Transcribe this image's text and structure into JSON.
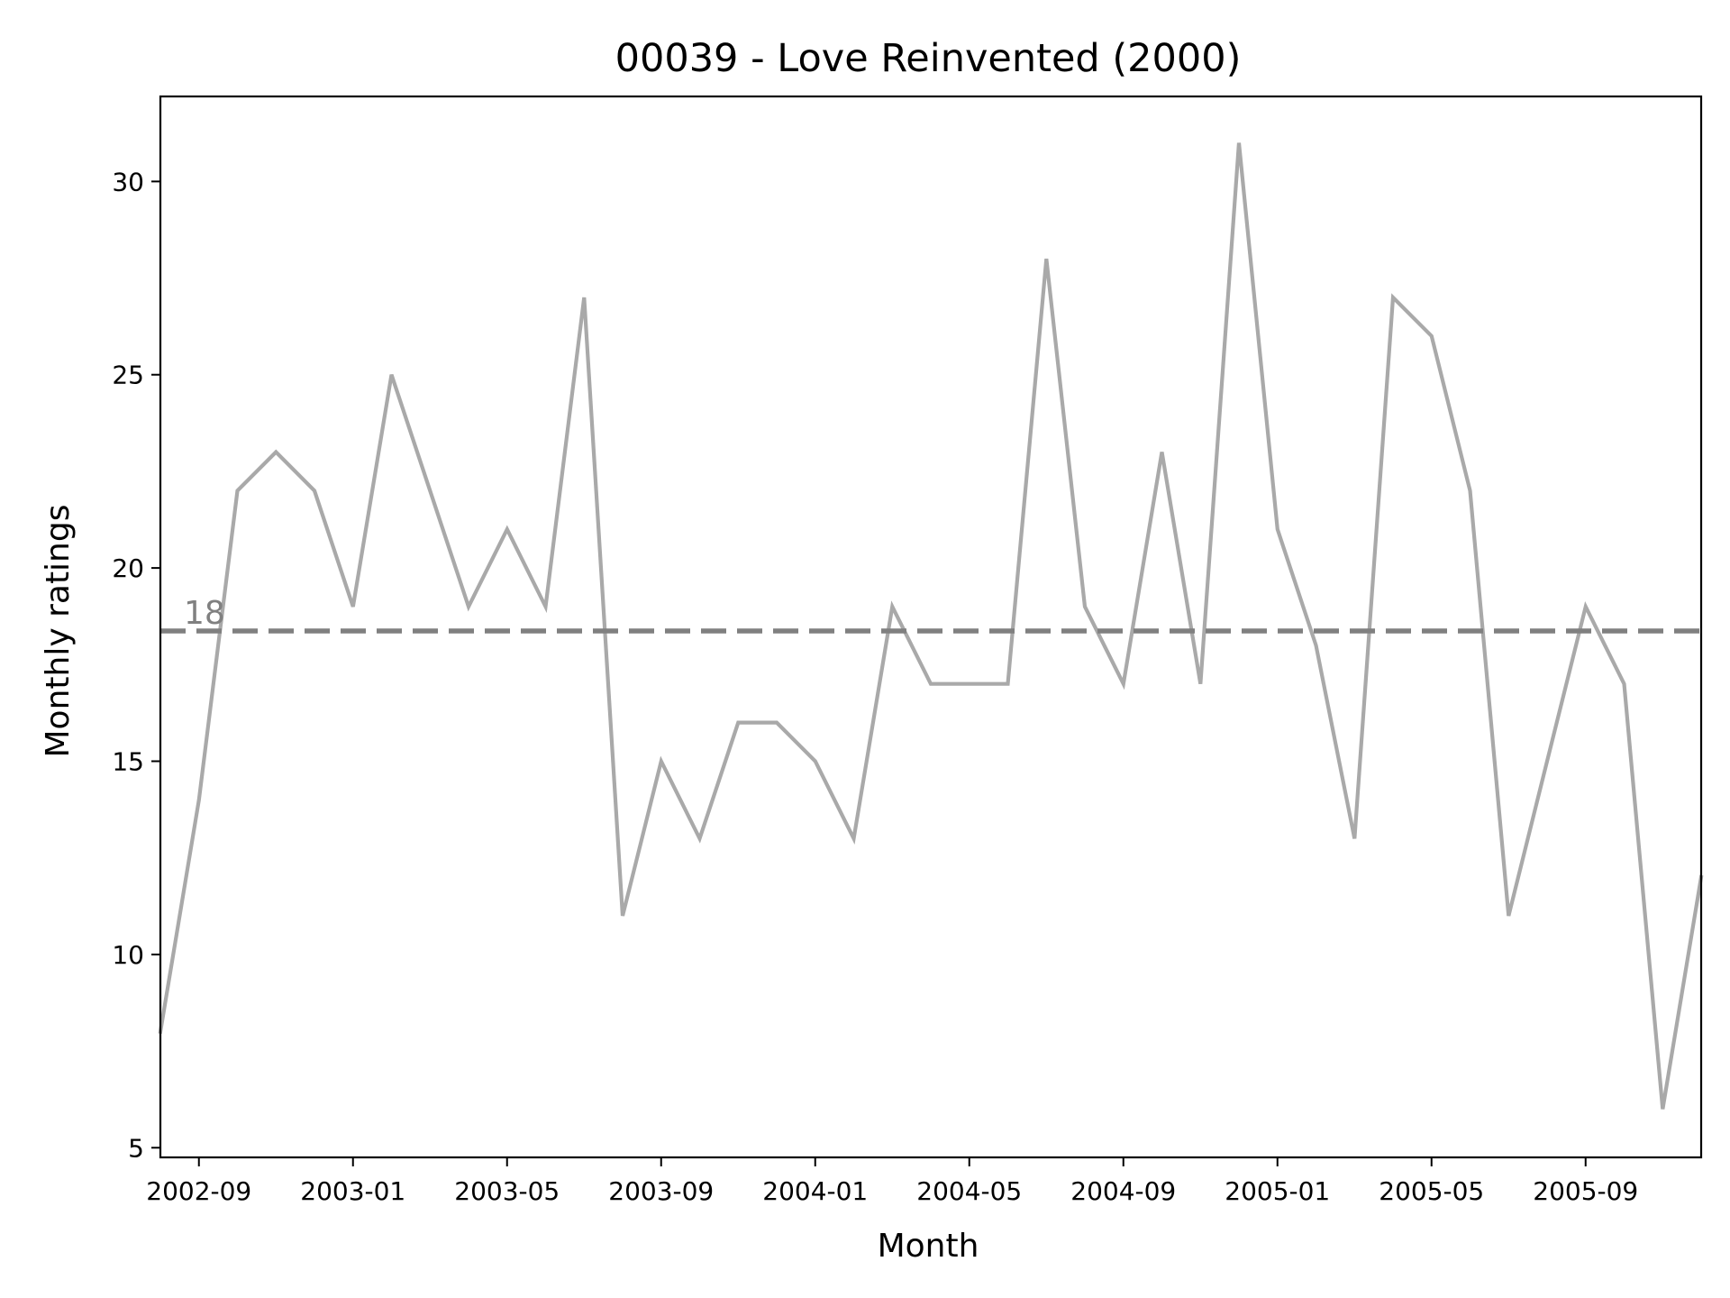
{
  "chart_data": {
    "type": "line",
    "title": "00039 - Love Reinvented (2000)",
    "xlabel": "Month",
    "ylabel": "Monthly ratings",
    "x_tick_labels": [
      "2002-09",
      "2003-01",
      "2003-05",
      "2003-09",
      "2004-01",
      "2004-05",
      "2004-09",
      "2005-01",
      "2005-05",
      "2005-09"
    ],
    "y_ticks": [
      5,
      10,
      15,
      20,
      25,
      30
    ],
    "ylim": [
      4.75,
      32.2
    ],
    "xlim": [
      "2002-08",
      "2005-12"
    ],
    "grid": false,
    "series": [
      {
        "color": "#a9a9a9",
        "x": [
          "2002-08",
          "2002-09",
          "2002-10",
          "2002-11",
          "2002-12",
          "2003-01",
          "2003-02",
          "2003-03",
          "2003-04",
          "2003-05",
          "2003-06",
          "2003-07",
          "2003-08",
          "2003-09",
          "2003-10",
          "2003-11",
          "2003-12",
          "2004-01",
          "2004-02",
          "2004-03",
          "2004-04",
          "2004-05",
          "2004-06",
          "2004-07",
          "2004-08",
          "2004-09",
          "2004-10",
          "2004-11",
          "2004-12",
          "2005-01",
          "2005-02",
          "2005-03",
          "2005-04",
          "2005-05",
          "2005-06",
          "2005-07",
          "2005-08",
          "2005-09",
          "2005-10",
          "2005-11",
          "2005-12"
        ],
        "values": [
          8,
          14,
          22,
          23,
          22,
          19,
          25,
          22,
          19,
          21,
          19,
          27,
          11,
          15,
          13,
          16,
          16,
          15,
          13,
          19,
          17,
          17,
          17,
          28,
          19,
          17,
          23,
          17,
          31,
          21,
          18,
          13,
          27,
          26,
          22,
          11,
          15,
          19,
          17,
          6,
          12
        ]
      }
    ],
    "reference_line": {
      "value": 18.37,
      "label": "18",
      "color": "#808080",
      "style": "dashed"
    }
  }
}
